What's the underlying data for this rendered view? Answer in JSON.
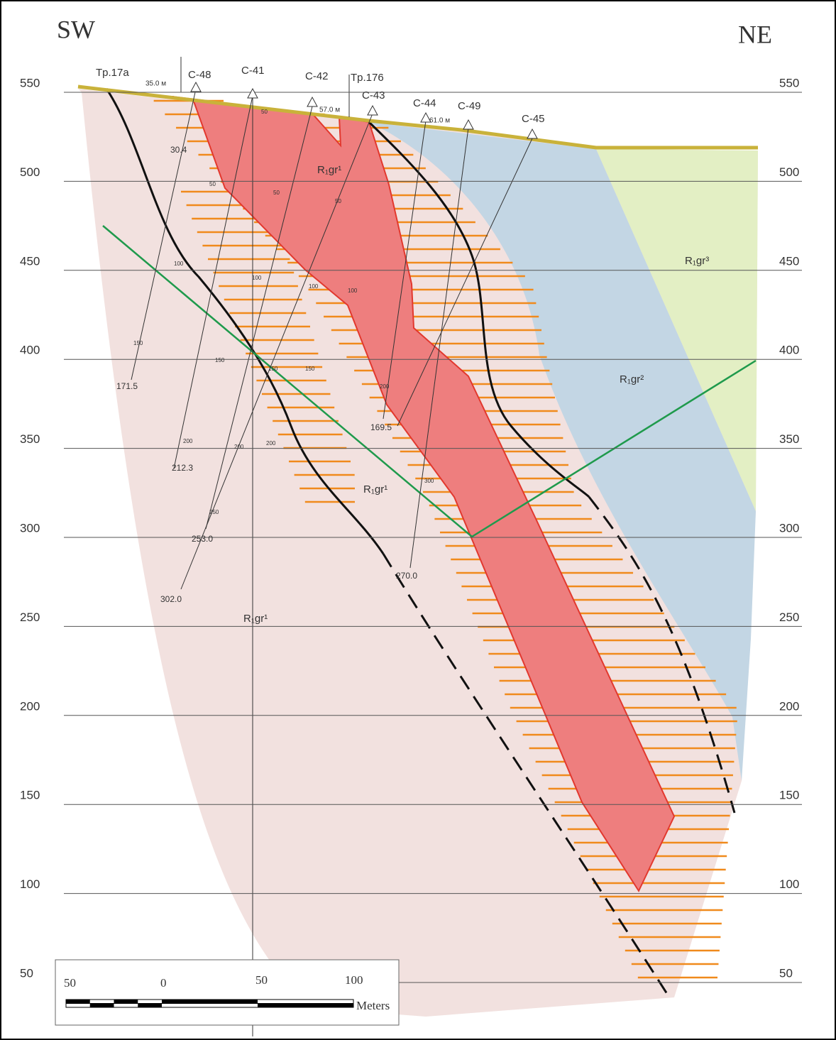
{
  "orientation": {
    "left": "SW",
    "right": "NE"
  },
  "elevations": [
    "550",
    "500",
    "450",
    "400",
    "350",
    "300",
    "250",
    "200",
    "150",
    "100",
    "50"
  ],
  "boreholes": [
    "Tp.17a",
    "C-48",
    "C-41",
    "C-42",
    "Tp.176",
    "C-43",
    "C-44",
    "C-49",
    "C-45"
  ],
  "depth_labels": [
    "35.0 м",
    "57.0 м",
    "61.0 м",
    "30.4",
    "171.5",
    "212.3",
    "253.0",
    "302.0",
    "169.5",
    "270.0"
  ],
  "borehole_ticks": [
    "50",
    "50",
    "50",
    "50",
    "100",
    "100",
    "100",
    "100",
    "150",
    "150",
    "150",
    "150",
    "200",
    "200",
    "200",
    "200",
    "250",
    "300"
  ],
  "units": [
    "R₁gr¹",
    "R₁gr¹",
    "R₁gr¹",
    "R₁gr²",
    "R₁gr³"
  ],
  "scale_bar": {
    "labels": [
      "50",
      "0",
      "50",
      "100"
    ],
    "unit": "Meters"
  }
}
